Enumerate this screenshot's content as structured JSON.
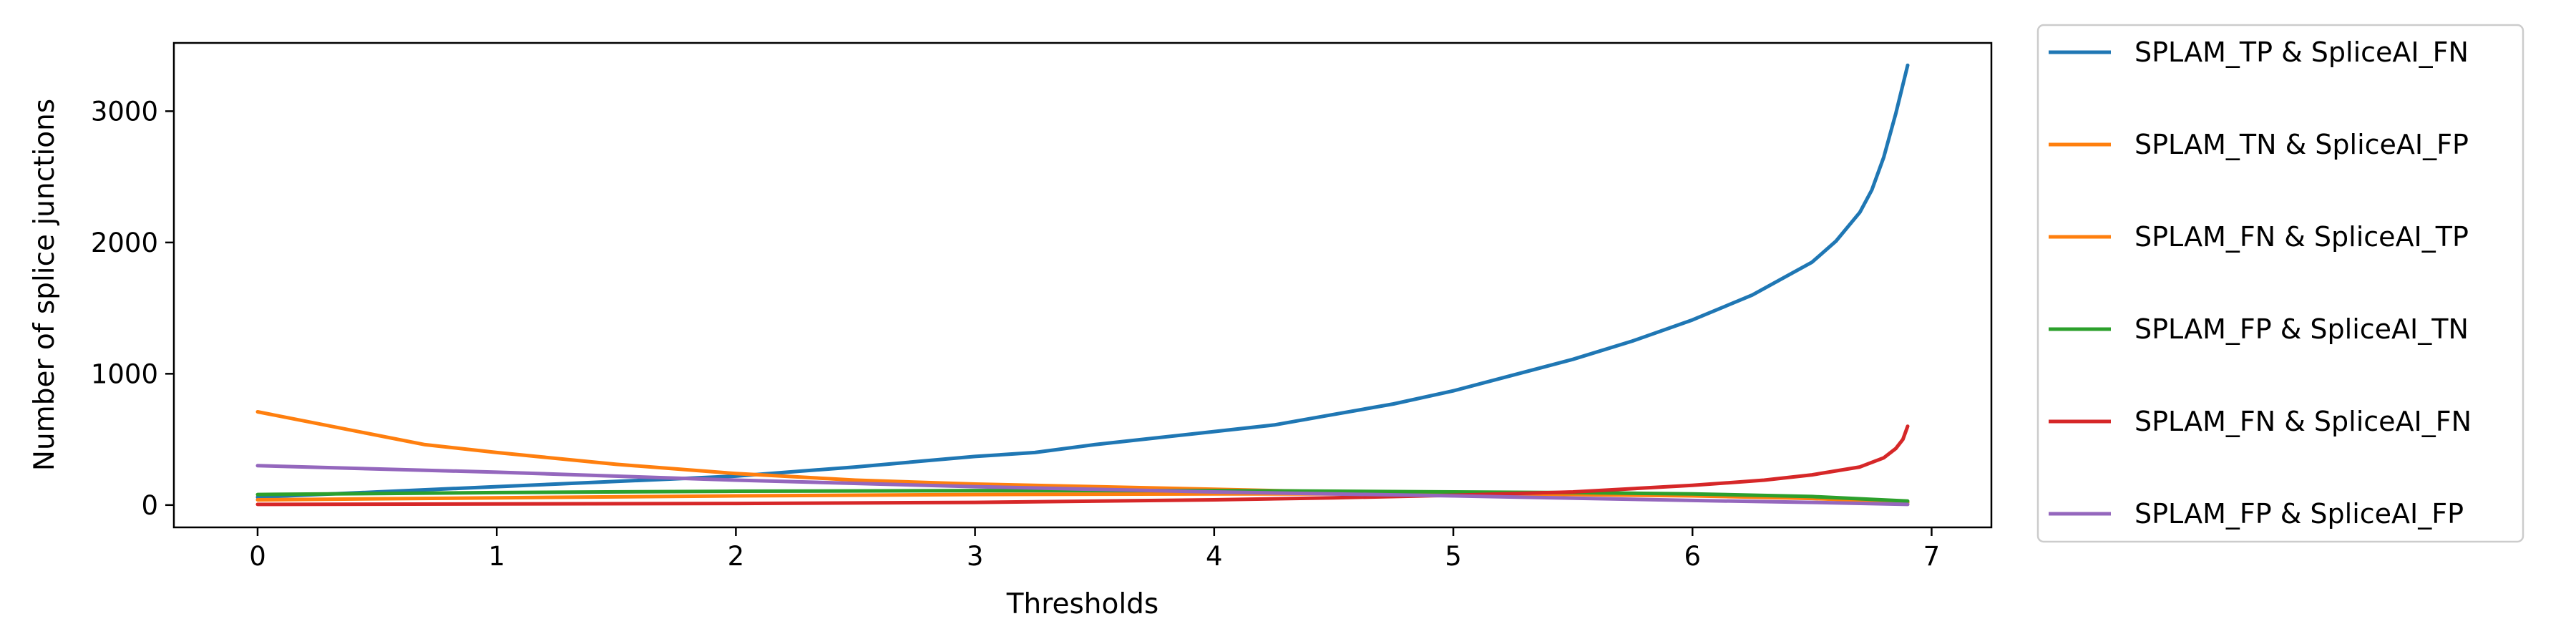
{
  "chart_data": {
    "type": "line",
    "title": "",
    "xlabel": "Thresholds",
    "ylabel": "Number of splice junctions",
    "xlim": [
      -0.35,
      7.25
    ],
    "ylim": [
      -170,
      3520
    ],
    "xticks": [
      0,
      1,
      2,
      3,
      4,
      5,
      6,
      7
    ],
    "yticks": [
      0,
      1000,
      2000,
      3000
    ],
    "grid": false,
    "legend_position": "outside-right",
    "series": [
      {
        "name": "SPLAM_TP & SpliceAI_FN",
        "color": "#1f77b4",
        "x": [
          0,
          0.5,
          1,
          1.5,
          2,
          2.5,
          3,
          3.25,
          3.5,
          4,
          4.25,
          4.5,
          4.75,
          5,
          5.25,
          5.5,
          5.75,
          6,
          6.25,
          6.5,
          6.6,
          6.7,
          6.75,
          6.8,
          6.85,
          6.9
        ],
        "y": [
          60,
          100,
          140,
          180,
          220,
          290,
          370,
          400,
          460,
          560,
          610,
          690,
          770,
          870,
          990,
          1110,
          1250,
          1410,
          1600,
          1850,
          2010,
          2230,
          2400,
          2650,
          2980,
          3350
        ]
      },
      {
        "name": "SPLAM_TN & SpliceAI_FP",
        "color": "#ff7f0e",
        "x": [
          0,
          0.7,
          1,
          1.5,
          2,
          2.5,
          3,
          3.5,
          4,
          4.5,
          5,
          5.5,
          6,
          6.5,
          6.9
        ],
        "y": [
          710,
          460,
          400,
          310,
          240,
          190,
          160,
          140,
          120,
          100,
          90,
          80,
          70,
          50,
          20
        ]
      },
      {
        "name": "SPLAM_FN & SpliceAI_TP",
        "color": "#ff7f0e",
        "x": [
          0,
          1,
          2,
          3,
          4,
          5,
          5.5,
          6,
          6.5,
          6.9
        ],
        "y": [
          40,
          55,
          70,
          80,
          85,
          85,
          82,
          75,
          55,
          20
        ]
      },
      {
        "name": "SPLAM_FP & SpliceAI_TN",
        "color": "#2ca02c",
        "x": [
          0,
          1,
          2,
          3,
          4,
          4.5,
          5,
          5.5,
          6,
          6.5,
          6.9
        ],
        "y": [
          80,
          95,
          105,
          110,
          110,
          105,
          100,
          95,
          85,
          65,
          30
        ]
      },
      {
        "name": "SPLAM_FN & SpliceAI_FN",
        "color": "#d62728",
        "x": [
          0,
          1,
          2,
          3,
          4,
          4.5,
          5,
          5.5,
          6,
          6.3,
          6.5,
          6.7,
          6.8,
          6.85,
          6.88,
          6.9
        ],
        "y": [
          5,
          8,
          12,
          20,
          40,
          55,
          75,
          100,
          150,
          190,
          230,
          290,
          360,
          430,
          500,
          600
        ]
      },
      {
        "name": "SPLAM_FP & SpliceAI_FP",
        "color": "#9467bd",
        "x": [
          0,
          1,
          2,
          3,
          4,
          5,
          6,
          6.5,
          6.9
        ],
        "y": [
          300,
          250,
          190,
          140,
          100,
          70,
          35,
          20,
          5
        ]
      }
    ]
  }
}
